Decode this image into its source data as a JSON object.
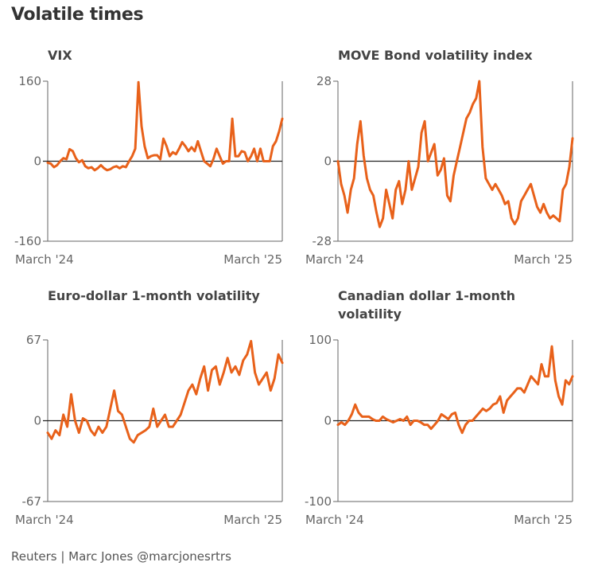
{
  "title": "Volatile times",
  "footer": "Reuters | Marc Jones @marcjonesrtrs",
  "colors": {
    "line": "#e8611a",
    "axis": "#666666",
    "zero": "#222222"
  },
  "chart_data": [
    {
      "type": "line",
      "title": "VIX",
      "ylim": [
        -160,
        160
      ],
      "yticks": [
        "160",
        "0",
        "-160"
      ],
      "xticks": [
        "March '24",
        "March '25"
      ],
      "series": [
        {
          "name": "VIX",
          "values": [
            -3,
            -5,
            -12,
            -8,
            0,
            6,
            4,
            24,
            20,
            6,
            -2,
            2,
            -10,
            -14,
            -12,
            -18,
            -14,
            -8,
            -14,
            -18,
            -16,
            -12,
            -10,
            -14,
            -10,
            -12,
            0,
            10,
            25,
            158,
            70,
            30,
            6,
            10,
            12,
            12,
            4,
            45,
            30,
            10,
            18,
            14,
            25,
            38,
            30,
            20,
            28,
            20,
            40,
            20,
            0,
            -5,
            -10,
            5,
            25,
            10,
            -5,
            0,
            0,
            85,
            10,
            10,
            20,
            18,
            0,
            10,
            25,
            0,
            25,
            0,
            0,
            0,
            30,
            40,
            60,
            85
          ]
        }
      ]
    },
    {
      "type": "line",
      "title": "MOVE Bond volatility index",
      "ylim": [
        -28,
        28
      ],
      "yticks": [
        "28",
        "0",
        "-28"
      ],
      "xticks": [
        "March '24",
        "March '25"
      ],
      "series": [
        {
          "name": "MOVE",
          "values": [
            0,
            -8,
            -12,
            -18,
            -10,
            -6,
            6,
            14,
            2,
            -6,
            -10,
            -12,
            -18,
            -23,
            -20,
            -10,
            -15,
            -20,
            -10,
            -7,
            -15,
            -10,
            0,
            -10,
            -6,
            -2,
            10,
            14,
            0,
            3,
            6,
            -5,
            -3,
            1,
            -12,
            -14,
            -5,
            0,
            5,
            10,
            15,
            17,
            20,
            22,
            28,
            5,
            -6,
            -8,
            -10,
            -8,
            -10,
            -12,
            -15,
            -14,
            -20,
            -22,
            -20,
            -14,
            -12,
            -10,
            -8,
            -12,
            -16,
            -18,
            -15,
            -18,
            -20,
            -19,
            -20,
            -21,
            -10,
            -8,
            -2,
            8
          ]
        }
      ]
    },
    {
      "type": "line",
      "title": "Euro-dollar 1-month volatility",
      "ylim": [
        -67,
        67
      ],
      "yticks": [
        "67",
        "0",
        "-67"
      ],
      "xticks": [
        "March '24",
        "March '25"
      ],
      "series": [
        {
          "name": "EURUSD vol",
          "values": [
            -10,
            -15,
            -8,
            -12,
            5,
            -5,
            22,
            0,
            -10,
            2,
            0,
            -8,
            -12,
            -5,
            -10,
            -5,
            10,
            25,
            8,
            5,
            -5,
            -15,
            -18,
            -12,
            -10,
            -8,
            -5,
            10,
            -5,
            0,
            5,
            -5,
            -5,
            0,
            5,
            15,
            25,
            30,
            22,
            35,
            45,
            25,
            42,
            45,
            30,
            40,
            52,
            40,
            45,
            38,
            50,
            55,
            66,
            40,
            30,
            35,
            40,
            25,
            35,
            55,
            48
          ]
        }
      ]
    },
    {
      "type": "line",
      "title": "Canadian dollar 1-month volatility",
      "ylim": [
        -100,
        100
      ],
      "yticks": [
        "100",
        "0",
        "-100"
      ],
      "xticks": [
        "March '24",
        "March '25"
      ],
      "series": [
        {
          "name": "USDCAD vol",
          "values": [
            -5,
            -2,
            -5,
            0,
            8,
            20,
            10,
            5,
            5,
            5,
            2,
            0,
            0,
            5,
            2,
            0,
            -2,
            0,
            2,
            0,
            5,
            -5,
            0,
            0,
            -2,
            -5,
            -5,
            -10,
            -5,
            0,
            8,
            5,
            2,
            8,
            10,
            -5,
            -15,
            -5,
            0,
            0,
            5,
            10,
            15,
            12,
            15,
            20,
            22,
            30,
            10,
            25,
            30,
            35,
            40,
            40,
            35,
            45,
            55,
            50,
            45,
            70,
            55,
            55,
            92,
            50,
            30,
            20,
            50,
            45,
            55
          ]
        }
      ]
    }
  ]
}
